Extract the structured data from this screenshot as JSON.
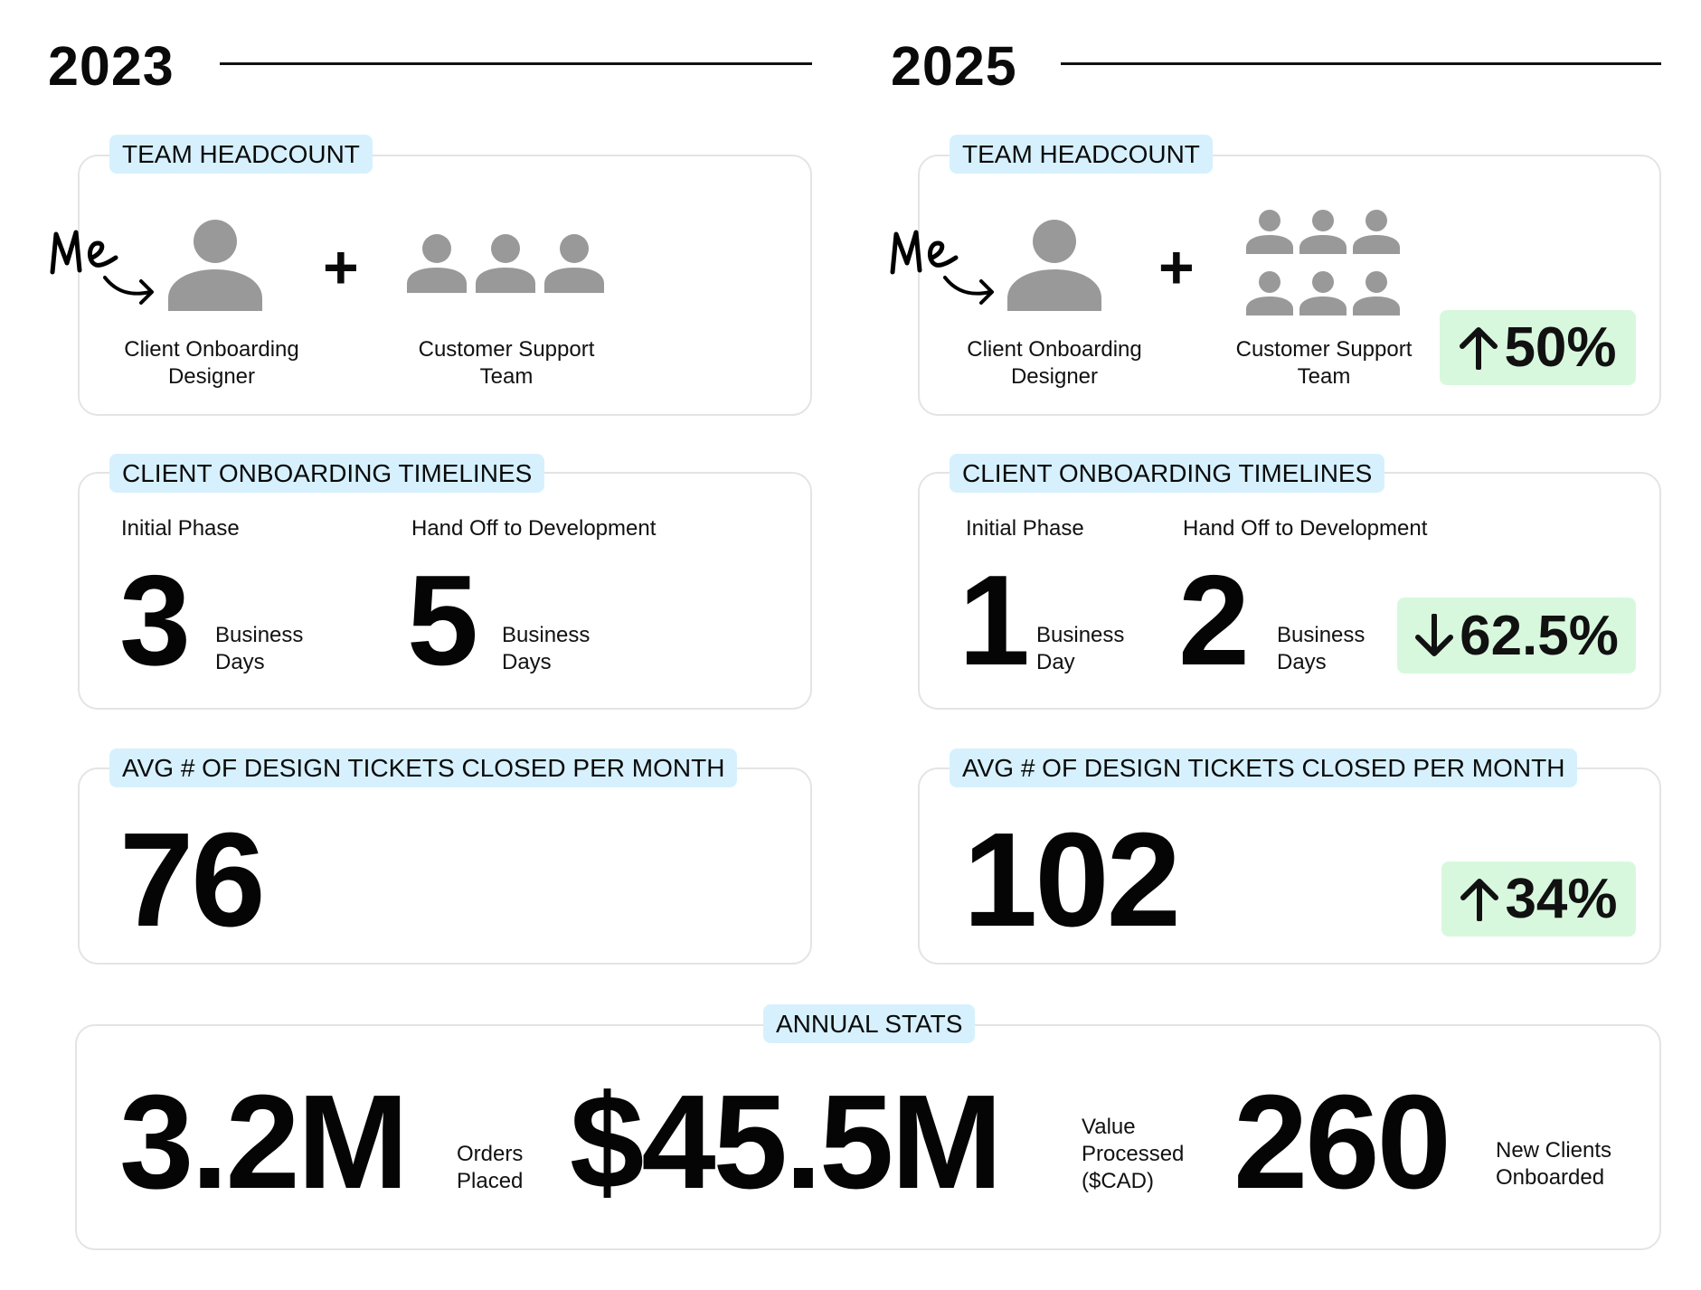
{
  "left": {
    "year": "2023",
    "headcount": {
      "tag": "TEAM HEADCOUNT",
      "me": "Me",
      "designer_caption": "Client Onboarding Designer",
      "support_caption": "Customer Support Team",
      "support_count": 3
    },
    "timelines": {
      "tag": "CLIENT ONBOARDING TIMELINES",
      "phase1_label": "Initial Phase",
      "phase1_value": "3",
      "phase1_unit_a": "Business",
      "phase1_unit_b": "Days",
      "phase2_label": "Hand Off to Development",
      "phase2_value": "5",
      "phase2_unit_a": "Business",
      "phase2_unit_b": "Days"
    },
    "tickets": {
      "tag": "AVG # OF DESIGN TICKETS CLOSED PER MONTH",
      "value": "76"
    }
  },
  "right": {
    "year": "2025",
    "headcount": {
      "tag": "TEAM HEADCOUNT",
      "me": "Me",
      "designer_caption": "Client Onboarding Designer",
      "support_caption": "Customer Support Team",
      "support_count": 6,
      "change": "50%",
      "change_direction": "up"
    },
    "timelines": {
      "tag": "CLIENT ONBOARDING TIMELINES",
      "phase1_label": "Initial Phase",
      "phase1_value": "1",
      "phase1_unit_a": "Business",
      "phase1_unit_b": "Day",
      "phase2_label": "Hand Off to Development",
      "phase2_value": "2",
      "phase2_unit_a": "Business",
      "phase2_unit_b": "Days",
      "change": "62.5%",
      "change_direction": "down"
    },
    "tickets": {
      "tag": "AVG # OF DESIGN TICKETS CLOSED PER MONTH",
      "value": "102",
      "change": "34%",
      "change_direction": "up"
    }
  },
  "annual": {
    "tag": "ANNUAL STATS",
    "orders_value": "3.2M",
    "orders_label_a": "Orders",
    "orders_label_b": "Placed",
    "processed_value": "$45.5M",
    "processed_label_a": "Value",
    "processed_label_b": "Processed",
    "processed_label_c": "($CAD)",
    "clients_value": "260",
    "clients_label_a": "New Clients",
    "clients_label_b": "Onboarded"
  },
  "colors": {
    "tag_bg": "#d6f1fd",
    "badge_bg": "#d8f8de",
    "icon_gray": "#999999",
    "text": "#0a0a0a"
  },
  "icons": [
    "person-icon",
    "plus-icon",
    "arrow-up-icon",
    "arrow-down-icon",
    "handwritten-me-annotation"
  ]
}
